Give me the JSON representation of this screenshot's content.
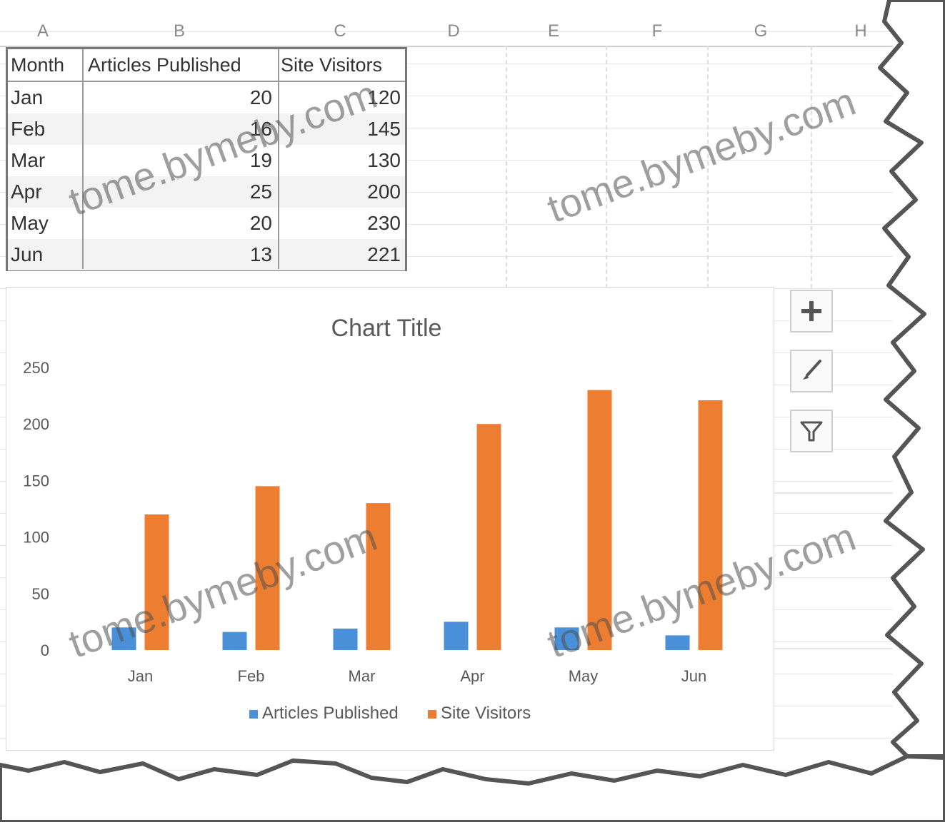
{
  "column_headers": [
    "A",
    "B",
    "C",
    "D",
    "E",
    "F",
    "G",
    "H"
  ],
  "table": {
    "headers": [
      "Month",
      "Articles Published",
      "Site Visitors"
    ],
    "rows": [
      [
        "Jan",
        "20",
        "120"
      ],
      [
        "Feb",
        "16",
        "145"
      ],
      [
        "Mar",
        "19",
        "130"
      ],
      [
        "Apr",
        "25",
        "200"
      ],
      [
        "May",
        "20",
        "230"
      ],
      [
        "Jun",
        "13",
        "221"
      ]
    ]
  },
  "chart_data": {
    "type": "bar",
    "title": "Chart Title",
    "categories": [
      "Jan",
      "Feb",
      "Mar",
      "Apr",
      "May",
      "Jun"
    ],
    "series": [
      {
        "name": "Articles Published",
        "values": [
          20,
          16,
          19,
          25,
          20,
          13
        ],
        "color": "#4a90d9"
      },
      {
        "name": "Site Visitors",
        "values": [
          120,
          145,
          130,
          200,
          230,
          221
        ],
        "color": "#ed7d31"
      }
    ],
    "yticks": [
      "0",
      "50",
      "100",
      "150",
      "200",
      "250"
    ],
    "ylim": [
      0,
      250
    ],
    "legend_position": "bottom",
    "grid": false
  },
  "chart_tools": {
    "add_element_icon": "plus-icon",
    "style_icon": "brush-icon",
    "filter_icon": "filter-icon"
  },
  "watermark": "tome.bymeby.com"
}
